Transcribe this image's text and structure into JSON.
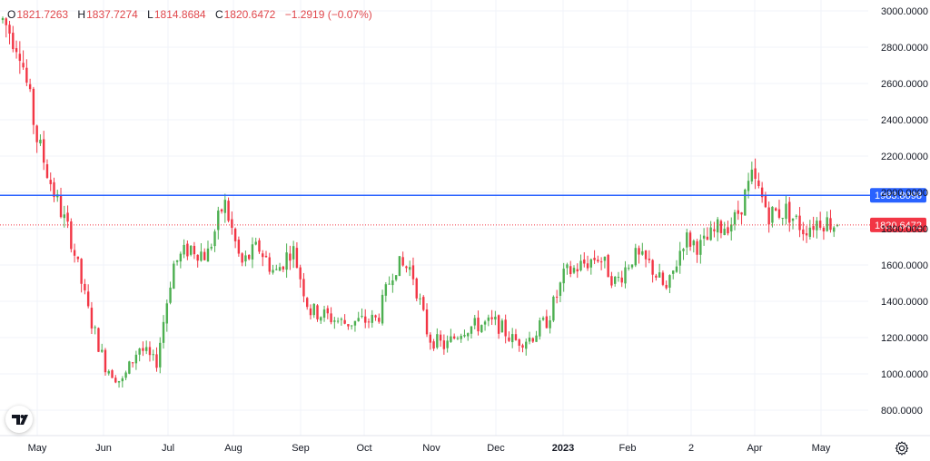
{
  "legend": {
    "o_label": "O",
    "o_value": "1821.7263",
    "h_label": "H",
    "h_value": "1837.7274",
    "l_label": "L",
    "l_value": "1814.8684",
    "c_label": "C",
    "c_value": "1820.6472",
    "change": "−1.2919 (−0.07%)"
  },
  "colors": {
    "up": "#4caf50",
    "down": "#f23645",
    "horizontal_line": "#2962ff",
    "last_price_line": "#f23645",
    "grid": "#f0f3fa",
    "axis_text": "#131722"
  },
  "icons": {
    "logo": "tradingview-logo-icon",
    "settings": "gear-icon"
  },
  "chart_data": {
    "type": "candlestick",
    "ylim": [
      700,
      3050
    ],
    "y_ticks": [
      "3000.0000",
      "2800.0000",
      "2600.0000",
      "2400.0000",
      "2200.0000",
      "2000.0000",
      "1800.0000",
      "1600.0000",
      "1400.0000",
      "1200.0000",
      "1000.0000",
      "800.0000"
    ],
    "x_ticks": [
      "May",
      "Jun",
      "Jul",
      "Aug",
      "Sep",
      "Oct",
      "Nov",
      "Dec",
      "2023",
      "Feb",
      "2",
      "Apr",
      "May"
    ],
    "horizontal_line": {
      "value": 1983.8098,
      "label": "1983.8098"
    },
    "last_price": {
      "value": 1820.6472,
      "label": "1820.6472"
    },
    "close_anchors": [
      [
        "May",
        2950
      ],
      [
        "May",
        2800
      ],
      [
        "May",
        2300
      ],
      [
        "May",
        2000
      ],
      [
        "Jun",
        1750
      ],
      [
        "Jun",
        1350
      ],
      [
        "Jun",
        1050
      ],
      [
        "Jun",
        950
      ],
      [
        "Jul",
        1150
      ],
      [
        "Jul",
        1050
      ],
      [
        "Jul",
        1600
      ],
      [
        "Jul",
        1700
      ],
      [
        "Aug",
        1650
      ],
      [
        "Aug",
        1950
      ],
      [
        "Aug",
        1600
      ],
      [
        "Aug",
        1700
      ],
      [
        "Sep",
        1550
      ],
      [
        "Sep",
        1700
      ],
      [
        "Sep",
        1350
      ],
      [
        "Sep",
        1320
      ],
      [
        "Oct",
        1280
      ],
      [
        "Oct",
        1290
      ],
      [
        "Oct",
        1300
      ],
      [
        "Oct",
        1600
      ],
      [
        "Nov",
        1580
      ],
      [
        "Nov",
        1200
      ],
      [
        "Nov",
        1150
      ],
      [
        "Nov",
        1250
      ],
      [
        "Dec",
        1270
      ],
      [
        "Dec",
        1280
      ],
      [
        "Dec",
        1180
      ],
      [
        "Dec",
        1200
      ],
      [
        "2023",
        1300
      ],
      [
        "2023",
        1550
      ],
      [
        "2023",
        1600
      ],
      [
        "2023",
        1650
      ],
      [
        "Feb",
        1500
      ],
      [
        "Feb",
        1650
      ],
      [
        "Feb",
        1600
      ],
      [
        "Feb",
        1450
      ],
      [
        "2",
        1750
      ],
      [
        "2",
        1700
      ],
      [
        "2",
        1800
      ],
      [
        "2",
        1850
      ],
      [
        "Apr",
        2080
      ],
      [
        "Apr",
        1880
      ],
      [
        "Apr",
        1900
      ],
      [
        "May",
        1800
      ],
      [
        "May",
        1850
      ],
      [
        "May",
        1820
      ]
    ]
  }
}
